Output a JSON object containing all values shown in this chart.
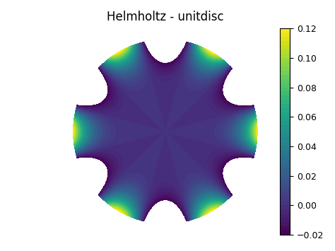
{
  "title": "Helmholtz - unitdisc",
  "cmap": "viridis",
  "vmin": -0.02,
  "vmax": 0.12,
  "n_theta": 500,
  "n_r": 300,
  "angular_mode": 6,
  "colorbar_ticks": [
    -0.02,
    0.0,
    0.02,
    0.04,
    0.06,
    0.08,
    0.1,
    0.12
  ],
  "background_color": "#ffffff",
  "figsize": [
    4.74,
    3.55
  ],
  "dpi": 100,
  "n_levels": 50
}
